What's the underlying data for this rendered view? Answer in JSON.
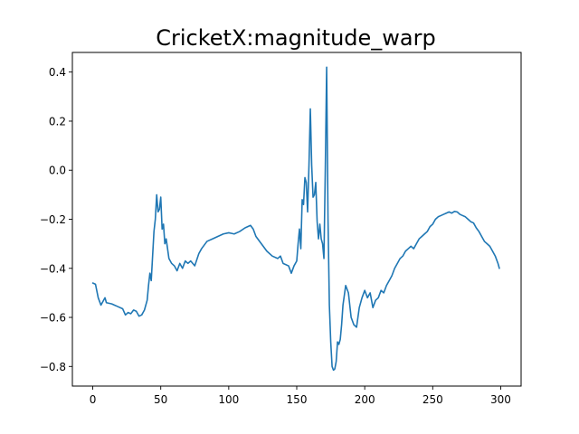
{
  "chart_data": {
    "type": "line",
    "title": "CricketX:magnitude_warp",
    "xlabel": "",
    "ylabel": "",
    "xlim": [
      -15,
      315
    ],
    "ylim": [
      -0.88,
      0.48
    ],
    "xticks": [
      0,
      50,
      100,
      150,
      200,
      250,
      300
    ],
    "yticks": [
      -0.8,
      -0.6,
      -0.4,
      -0.2,
      0.0,
      0.2,
      0.4
    ],
    "xtick_labels": [
      "0",
      "50",
      "100",
      "150",
      "200",
      "250",
      "300"
    ],
    "ytick_labels": [
      "−0.8",
      "−0.6",
      "−0.4",
      "−0.2",
      "0.0",
      "0.2",
      "0.4"
    ],
    "grid": false,
    "legend": "none",
    "series": [
      {
        "color": "#1f77b4",
        "points": [
          [
            0,
            -0.46
          ],
          [
            2,
            -0.465
          ],
          [
            4,
            -0.52
          ],
          [
            6,
            -0.55
          ],
          [
            8,
            -0.53
          ],
          [
            9,
            -0.52
          ],
          [
            10,
            -0.54
          ],
          [
            14,
            -0.545
          ],
          [
            18,
            -0.555
          ],
          [
            22,
            -0.565
          ],
          [
            24,
            -0.59
          ],
          [
            26,
            -0.58
          ],
          [
            28,
            -0.585
          ],
          [
            30,
            -0.57
          ],
          [
            32,
            -0.575
          ],
          [
            34,
            -0.595
          ],
          [
            36,
            -0.59
          ],
          [
            38,
            -0.57
          ],
          [
            40,
            -0.53
          ],
          [
            41,
            -0.47
          ],
          [
            42,
            -0.42
          ],
          [
            43,
            -0.45
          ],
          [
            44,
            -0.35
          ],
          [
            45,
            -0.25
          ],
          [
            46,
            -0.2
          ],
          [
            47,
            -0.1
          ],
          [
            48,
            -0.17
          ],
          [
            49,
            -0.16
          ],
          [
            50,
            -0.11
          ],
          [
            51,
            -0.24
          ],
          [
            52,
            -0.22
          ],
          [
            53,
            -0.3
          ],
          [
            54,
            -0.28
          ],
          [
            56,
            -0.36
          ],
          [
            58,
            -0.38
          ],
          [
            60,
            -0.39
          ],
          [
            62,
            -0.41
          ],
          [
            64,
            -0.38
          ],
          [
            66,
            -0.4
          ],
          [
            68,
            -0.37
          ],
          [
            70,
            -0.38
          ],
          [
            72,
            -0.37
          ],
          [
            75,
            -0.39
          ],
          [
            78,
            -0.34
          ],
          [
            80,
            -0.32
          ],
          [
            84,
            -0.29
          ],
          [
            88,
            -0.28
          ],
          [
            92,
            -0.27
          ],
          [
            96,
            -0.26
          ],
          [
            100,
            -0.255
          ],
          [
            104,
            -0.26
          ],
          [
            108,
            -0.25
          ],
          [
            112,
            -0.235
          ],
          [
            116,
            -0.225
          ],
          [
            118,
            -0.24
          ],
          [
            120,
            -0.27
          ],
          [
            124,
            -0.3
          ],
          [
            128,
            -0.33
          ],
          [
            132,
            -0.35
          ],
          [
            136,
            -0.36
          ],
          [
            138,
            -0.35
          ],
          [
            140,
            -0.38
          ],
          [
            144,
            -0.39
          ],
          [
            146,
            -0.42
          ],
          [
            148,
            -0.39
          ],
          [
            150,
            -0.37
          ],
          [
            151,
            -0.3
          ],
          [
            152,
            -0.24
          ],
          [
            153,
            -0.32
          ],
          [
            154,
            -0.12
          ],
          [
            155,
            -0.14
          ],
          [
            156,
            -0.03
          ],
          [
            157,
            -0.05
          ],
          [
            158,
            -0.17
          ],
          [
            159,
            0.02
          ],
          [
            160,
            0.25
          ],
          [
            161,
            0.02
          ],
          [
            162,
            -0.11
          ],
          [
            163,
            -0.1
          ],
          [
            164,
            -0.05
          ],
          [
            165,
            -0.21
          ],
          [
            166,
            -0.28
          ],
          [
            167,
            -0.22
          ],
          [
            168,
            -0.28
          ],
          [
            169,
            -0.3
          ],
          [
            170,
            -0.36
          ],
          [
            171,
            0.0
          ],
          [
            172,
            0.42
          ],
          [
            173,
            -0.2
          ],
          [
            174,
            -0.55
          ],
          [
            175,
            -0.7
          ],
          [
            176,
            -0.8
          ],
          [
            177,
            -0.815
          ],
          [
            178,
            -0.81
          ],
          [
            179,
            -0.78
          ],
          [
            180,
            -0.7
          ],
          [
            181,
            -0.71
          ],
          [
            182,
            -0.69
          ],
          [
            183,
            -0.63
          ],
          [
            184,
            -0.55
          ],
          [
            186,
            -0.47
          ],
          [
            188,
            -0.5
          ],
          [
            190,
            -0.6
          ],
          [
            192,
            -0.63
          ],
          [
            194,
            -0.64
          ],
          [
            196,
            -0.56
          ],
          [
            198,
            -0.52
          ],
          [
            200,
            -0.49
          ],
          [
            202,
            -0.52
          ],
          [
            204,
            -0.5
          ],
          [
            206,
            -0.56
          ],
          [
            208,
            -0.53
          ],
          [
            210,
            -0.52
          ],
          [
            212,
            -0.49
          ],
          [
            214,
            -0.5
          ],
          [
            216,
            -0.47
          ],
          [
            218,
            -0.45
          ],
          [
            220,
            -0.43
          ],
          [
            222,
            -0.4
          ],
          [
            224,
            -0.38
          ],
          [
            226,
            -0.36
          ],
          [
            228,
            -0.35
          ],
          [
            230,
            -0.33
          ],
          [
            232,
            -0.32
          ],
          [
            234,
            -0.31
          ],
          [
            236,
            -0.32
          ],
          [
            238,
            -0.3
          ],
          [
            240,
            -0.28
          ],
          [
            242,
            -0.27
          ],
          [
            244,
            -0.26
          ],
          [
            246,
            -0.25
          ],
          [
            248,
            -0.23
          ],
          [
            250,
            -0.22
          ],
          [
            252,
            -0.2
          ],
          [
            254,
            -0.19
          ],
          [
            256,
            -0.185
          ],
          [
            258,
            -0.18
          ],
          [
            260,
            -0.175
          ],
          [
            262,
            -0.17
          ],
          [
            264,
            -0.175
          ],
          [
            266,
            -0.168
          ],
          [
            268,
            -0.17
          ],
          [
            270,
            -0.18
          ],
          [
            272,
            -0.185
          ],
          [
            274,
            -0.19
          ],
          [
            276,
            -0.2
          ],
          [
            278,
            -0.21
          ],
          [
            280,
            -0.215
          ],
          [
            282,
            -0.235
          ],
          [
            284,
            -0.25
          ],
          [
            286,
            -0.27
          ],
          [
            288,
            -0.29
          ],
          [
            290,
            -0.3
          ],
          [
            292,
            -0.31
          ],
          [
            294,
            -0.33
          ],
          [
            296,
            -0.35
          ],
          [
            298,
            -0.38
          ],
          [
            299,
            -0.4
          ]
        ]
      }
    ]
  }
}
